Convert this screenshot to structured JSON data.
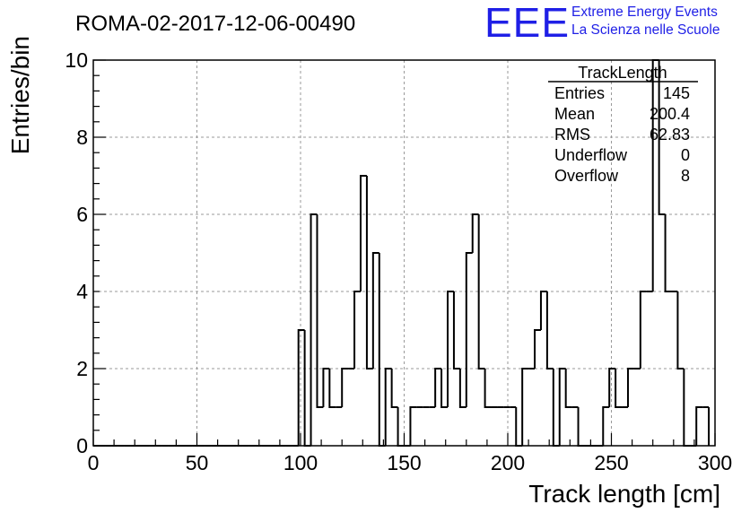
{
  "title": "ROMA-02-2017-12-06-00490",
  "logo": {
    "letters": "EEE",
    "line1": "Extreme Energy Events",
    "line2": "La Scienza nelle Scuole",
    "color": "#1f1fe6"
  },
  "stats": {
    "name": "TrackLength",
    "rows": [
      {
        "label": "Entries",
        "value": "145"
      },
      {
        "label": "Mean",
        "value": "200.4"
      },
      {
        "label": "RMS",
        "value": "62.83"
      },
      {
        "label": "Underflow",
        "value": "0"
      },
      {
        "label": "Overflow",
        "value": "8"
      }
    ]
  },
  "chart_data": {
    "type": "bar",
    "style": "step-histogram",
    "xlabel": "Track length [cm]",
    "ylabel": "Entries/bin",
    "xlim": [
      0,
      300
    ],
    "ylim": [
      0,
      10
    ],
    "grid": true,
    "x_ticks": [
      "0",
      "50",
      "100",
      "150",
      "200",
      "250",
      "300"
    ],
    "y_ticks": [
      "0",
      "2",
      "4",
      "6",
      "8",
      "10"
    ],
    "bin_width": 3,
    "bin_edges_start": 0,
    "values": [
      0,
      0,
      0,
      0,
      0,
      0,
      0,
      0,
      0,
      0,
      0,
      0,
      0,
      0,
      0,
      0,
      0,
      0,
      0,
      0,
      0,
      0,
      0,
      0,
      0,
      0,
      0,
      0,
      0,
      0,
      0,
      0,
      0,
      3,
      0,
      6,
      1,
      2,
      1,
      1,
      2,
      2,
      4,
      7,
      2,
      5,
      0,
      2,
      1,
      0,
      0,
      1,
      1,
      1,
      1,
      2,
      1,
      4,
      2,
      1,
      5,
      6,
      2,
      1,
      1,
      1,
      1,
      1,
      0,
      2,
      2,
      3,
      4,
      2,
      0,
      2,
      1,
      1,
      0,
      0,
      0,
      0,
      1,
      2,
      1,
      1,
      2,
      2,
      4,
      4,
      10,
      6,
      4,
      4,
      2,
      0,
      0,
      1,
      1
    ]
  }
}
